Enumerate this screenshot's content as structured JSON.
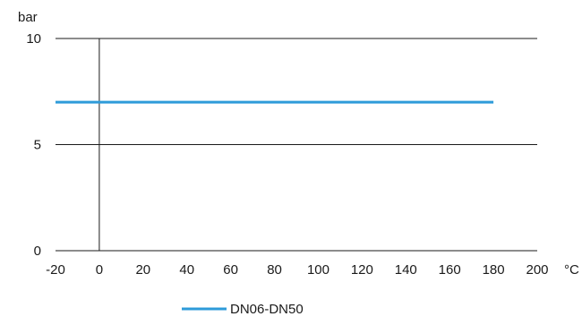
{
  "chart_data": {
    "type": "line",
    "title": "",
    "xlabel": "°C",
    "ylabel": "bar",
    "xlim": [
      -20,
      200
    ],
    "ylim": [
      0,
      10
    ],
    "x_ticks": [
      -20,
      0,
      20,
      40,
      60,
      80,
      100,
      120,
      140,
      160,
      180,
      200
    ],
    "y_ticks": [
      0,
      5,
      10
    ],
    "grid": "horizontal",
    "series": [
      {
        "name": "DN06-DN50",
        "color": "#2e9bd9",
        "x": [
          -20,
          180
        ],
        "y": [
          7,
          7
        ]
      }
    ],
    "legend_position": "bottom-center"
  }
}
